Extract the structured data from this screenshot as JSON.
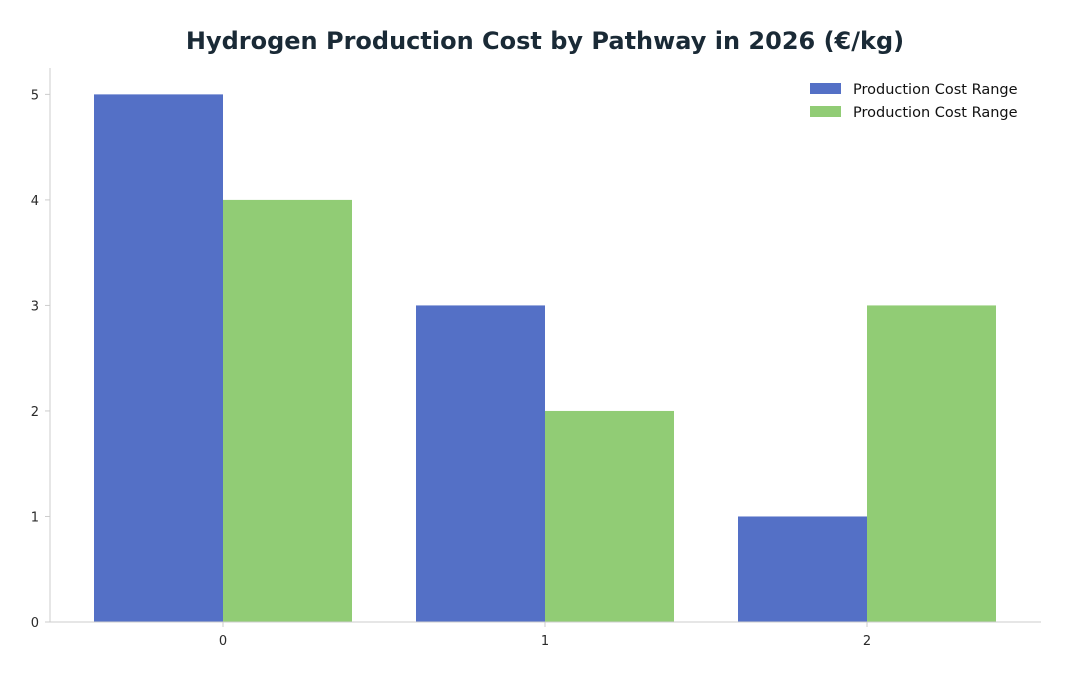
{
  "chart_data": {
    "type": "bar",
    "title": "Hydrogen Production Cost by Pathway in 2026 (€/kg)",
    "xlabel": "",
    "ylabel": "",
    "categories": [
      "0",
      "1",
      "2"
    ],
    "series": [
      {
        "name": "Production Cost Range",
        "values": [
          5,
          3,
          1
        ],
        "color": "#5470c6"
      },
      {
        "name": "Production Cost Range",
        "values": [
          4,
          2,
          3
        ],
        "color": "#91cc75"
      }
    ],
    "y_ticks": [
      "0",
      "1",
      "2",
      "3",
      "4",
      "5"
    ],
    "ylim": [
      0,
      5.25
    ],
    "grid": false,
    "legend_position": "top-right"
  }
}
